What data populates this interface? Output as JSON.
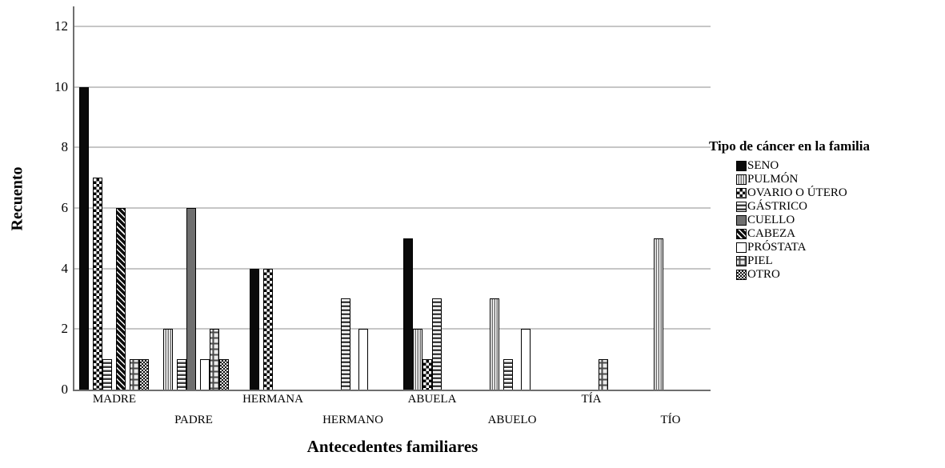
{
  "chart_data": {
    "type": "bar",
    "title": "",
    "xlabel": "Antecedentes familiares",
    "ylabel": "Recuento",
    "legend_title": "Tipo de cáncer en la familia",
    "legend_position": "right",
    "grid": true,
    "ylim": [
      0,
      12
    ],
    "yticks": [
      0,
      2,
      4,
      6,
      8,
      10,
      12
    ],
    "categories": [
      "MADRE",
      "PADRE",
      "HERMANA",
      "HERMANO",
      "ABUELA",
      "ABUELO",
      "TÍA",
      "TÍO"
    ],
    "series": [
      {
        "name": "SENO",
        "pattern": "solid-black",
        "values": [
          10,
          0,
          4,
          0,
          5,
          0,
          0,
          0
        ]
      },
      {
        "name": "PULMÓN",
        "pattern": "vstripes",
        "values": [
          0,
          2,
          0,
          0,
          2,
          3,
          0,
          5
        ]
      },
      {
        "name": "OVARIO O ÚTERO",
        "pattern": "checker",
        "values": [
          7,
          0,
          4,
          0,
          1,
          0,
          0,
          0
        ]
      },
      {
        "name": "GÁSTRICO",
        "pattern": "hstripes",
        "values": [
          1,
          1,
          0,
          3,
          3,
          1,
          0,
          0
        ]
      },
      {
        "name": "CUELLO",
        "pattern": "solid-gray",
        "values": [
          0,
          6,
          0,
          0,
          0,
          0,
          0,
          0
        ]
      },
      {
        "name": "CABEZA",
        "pattern": "diag",
        "values": [
          6,
          0,
          0,
          0,
          0,
          0,
          0,
          0
        ]
      },
      {
        "name": "PRÓSTATA",
        "pattern": "white",
        "values": [
          0,
          1,
          0,
          2,
          0,
          2,
          0,
          0
        ]
      },
      {
        "name": "PIEL",
        "pattern": "cross",
        "values": [
          1,
          2,
          0,
          0,
          0,
          0,
          1,
          0
        ]
      },
      {
        "name": "OTRO",
        "pattern": "dither",
        "values": [
          1,
          1,
          0,
          0,
          0,
          0,
          0,
          0
        ]
      }
    ],
    "colors": {
      "bar_black": "#0a0a0a",
      "bar_gray": "#6f6f6f",
      "gridline": "#c6c6c6",
      "axis": "#6f6f6f",
      "text": "#000000"
    }
  }
}
